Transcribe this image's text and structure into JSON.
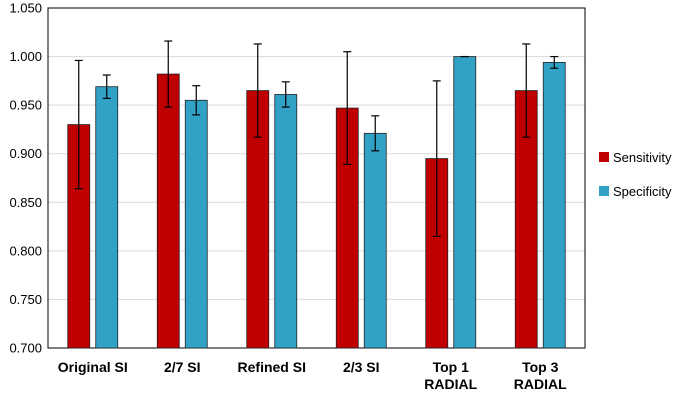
{
  "chart_data": {
    "type": "bar",
    "categories": [
      "Original SI",
      "2/7 SI",
      "Refined SI",
      "2/3 SI",
      "Top 1\nRADIAL",
      "Top 3\nRADIAL"
    ],
    "series": [
      {
        "name": "Sensitivity",
        "color": "#c00000",
        "values": [
          0.93,
          0.982,
          0.965,
          0.947,
          0.895,
          0.965
        ],
        "errors": [
          0.066,
          0.034,
          0.048,
          0.058,
          0.08,
          0.048
        ]
      },
      {
        "name": "Specificity",
        "color": "#31a1c6",
        "values": [
          0.969,
          0.955,
          0.961,
          0.921,
          1.0,
          0.994
        ],
        "errors": [
          0.012,
          0.015,
          0.013,
          0.018,
          0,
          0.006
        ]
      }
    ],
    "ylim": [
      0.7,
      1.05
    ],
    "yticks": [
      {
        "value": 0.7,
        "label": "0.700"
      },
      {
        "value": 0.75,
        "label": "0.750"
      },
      {
        "value": 0.8,
        "label": "0.800"
      },
      {
        "value": 0.85,
        "label": "0.850"
      },
      {
        "value": 0.9,
        "label": "0.900"
      },
      {
        "value": 0.95,
        "label": "0.950"
      },
      {
        "value": 1.0,
        "label": "1.000"
      },
      {
        "value": 1.05,
        "label": "1.050"
      }
    ],
    "grid": true,
    "legend": "right"
  }
}
